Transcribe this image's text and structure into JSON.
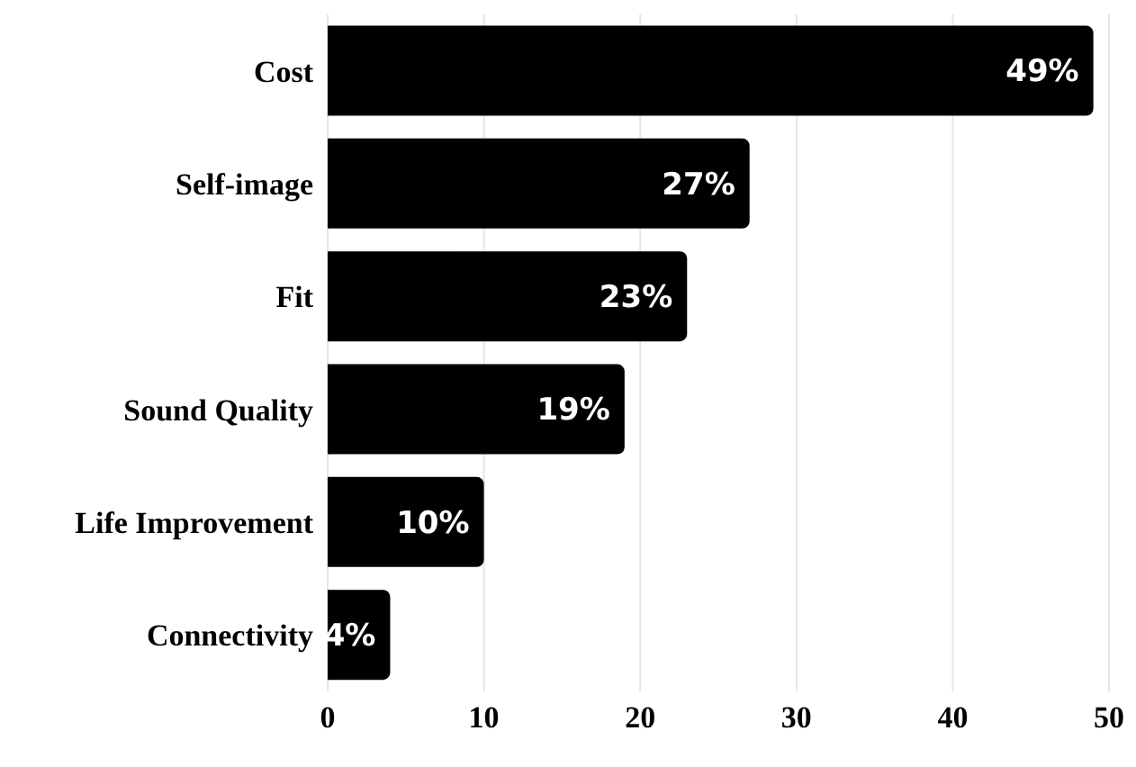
{
  "chart_data": {
    "type": "bar",
    "orientation": "horizontal",
    "categories": [
      "Cost",
      "Self-image",
      "Fit",
      "Sound Quality",
      "Life Improvement",
      "Connectivity"
    ],
    "values": [
      49,
      27,
      23,
      19,
      10,
      4
    ],
    "value_labels": [
      "49%",
      "27%",
      "23%",
      "19%",
      "10%",
      "4%"
    ],
    "color": "#000000",
    "xlim": [
      0,
      50
    ],
    "xticks": [
      0,
      10,
      20,
      30,
      40,
      50
    ],
    "grid": "x"
  }
}
